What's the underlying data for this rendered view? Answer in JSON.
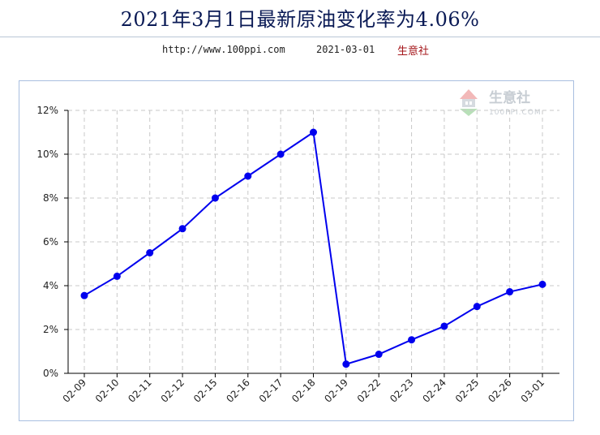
{
  "header": {
    "title": "2021年3月1日最新原油变化率为4.06%",
    "url": "http://www.100ppi.com",
    "date": "2021-03-01",
    "source": "生意社"
  },
  "watermark": {
    "name": "生意社",
    "site": "100PPI.COM"
  },
  "colors": {
    "line": "#0000ee",
    "grid": "#c8c8c8",
    "title": "#0a1a55",
    "source": "#a4161a"
  },
  "chart_data": {
    "type": "line",
    "categories": [
      "02-09",
      "02-10",
      "02-11",
      "02-12",
      "02-15",
      "02-16",
      "02-17",
      "02-18",
      "02-19",
      "02-22",
      "02-23",
      "02-24",
      "02-25",
      "02-26",
      "03-01"
    ],
    "series": [
      {
        "values": [
          3.55,
          4.43,
          5.5,
          6.6,
          8.0,
          9.0,
          10.0,
          11.0,
          0.42,
          0.87,
          1.53,
          2.15,
          3.05,
          3.72,
          4.06
        ]
      }
    ],
    "ylim": [
      0,
      12
    ],
    "yticks": [
      0,
      2,
      4,
      6,
      8,
      10,
      12
    ],
    "yticklabels": [
      "0%",
      "2%",
      "4%",
      "6%",
      "8%",
      "10%",
      "12%"
    ],
    "grid": true
  }
}
